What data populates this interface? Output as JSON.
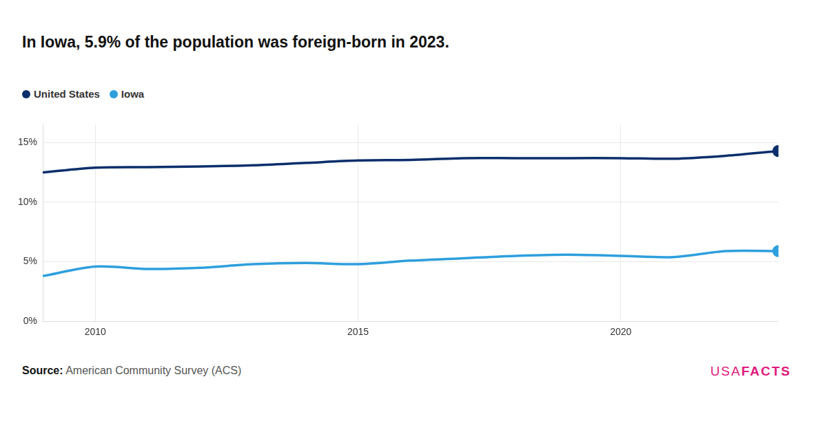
{
  "chart_data": {
    "type": "line",
    "title": "In Iowa, 5.9% of the population was foreign-born in 2023.",
    "x": [
      2009,
      2010,
      2011,
      2012,
      2013,
      2014,
      2015,
      2016,
      2017,
      2018,
      2019,
      2020,
      2021,
      2022,
      2023
    ],
    "series": [
      {
        "name": "United States",
        "color": "#0b2f6b",
        "values": [
          12.5,
          12.9,
          12.95,
          13.0,
          13.1,
          13.3,
          13.5,
          13.55,
          13.7,
          13.7,
          13.7,
          13.7,
          13.65,
          13.9,
          14.3
        ]
      },
      {
        "name": "Iowa",
        "color": "#2d9fdd",
        "values": [
          3.8,
          4.6,
          4.4,
          4.5,
          4.8,
          4.9,
          4.8,
          5.1,
          5.3,
          5.5,
          5.6,
          5.5,
          5.4,
          5.9,
          5.9
        ]
      }
    ],
    "xlim": [
      2009,
      2023
    ],
    "xticks": [
      2010,
      2015,
      2020
    ],
    "ylim": [
      0,
      16.5
    ],
    "yticks": [
      {
        "value": 0,
        "label": "0%"
      },
      {
        "value": 5,
        "label": "5%"
      },
      {
        "value": 10,
        "label": "10%"
      },
      {
        "value": 15,
        "label": "15%"
      }
    ],
    "grid": true,
    "legend": "top-left",
    "marker": "end",
    "source_label": "Source:",
    "source": "American Community Survey (ACS)",
    "brand": [
      "USA",
      "FACTS"
    ]
  }
}
